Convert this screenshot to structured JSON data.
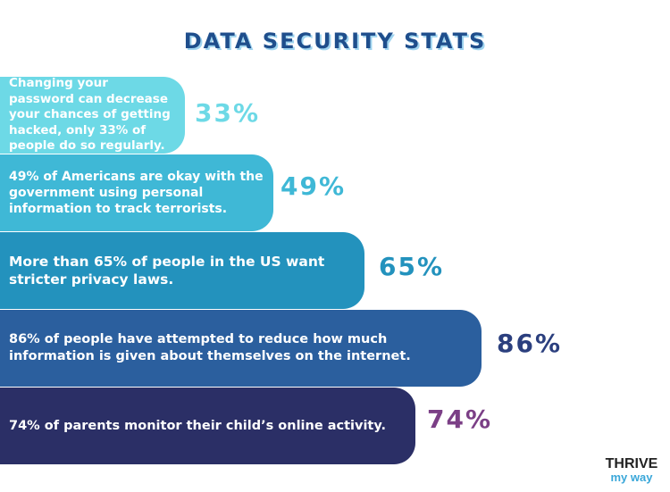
{
  "title": "DATA SECURITY STATS",
  "chart_data": {
    "type": "bar",
    "title": "DATA SECURITY STATS",
    "orientation": "horizontal",
    "categories": [
      "Changing your password can decrease your chances of getting hacked, only 33% of people do so regularly.",
      "49% of Americans are okay with the government using personal information to track terrorists.",
      "More than 65% of people in the US want stricter privacy laws.",
      "86% of people have attempted to reduce how much information is given about themselves on the internet.",
      "74% of parents monitor their child’s online activity."
    ],
    "values": [
      33,
      49,
      65,
      86,
      74
    ],
    "value_labels": [
      "33%",
      "49%",
      "65%",
      "86%",
      "74%"
    ],
    "bar_colors": [
      "#6dd9e6",
      "#3fb8d6",
      "#2392bd",
      "#2b5f9e",
      "#2b2f66"
    ],
    "label_colors": [
      "#6dd9e6",
      "#3fb8d6",
      "#2392bd",
      "#2b3f7e",
      "#7b3f86"
    ]
  },
  "logo": {
    "top": "THRIVE",
    "bottom": "my way"
  }
}
